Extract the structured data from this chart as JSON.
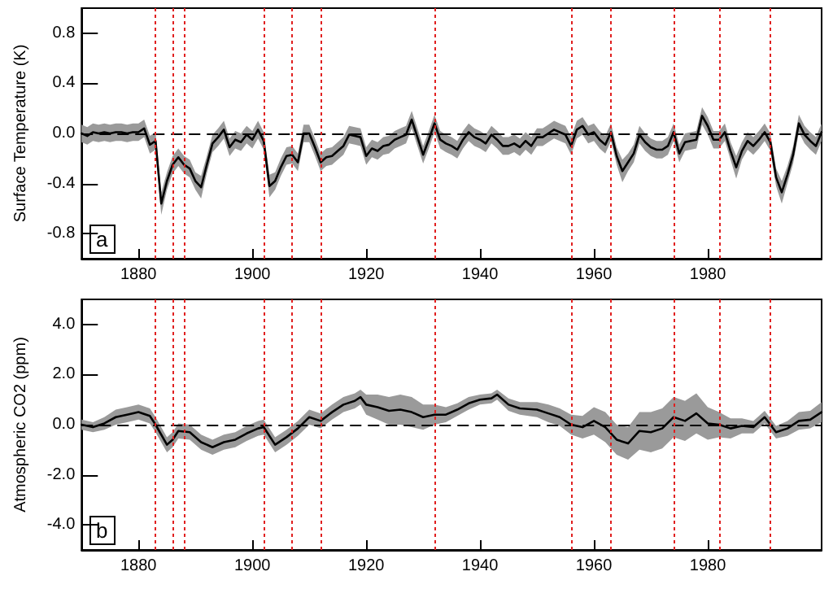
{
  "chart_data": [
    {
      "type": "line",
      "ylabel": "Surface Temperature (K)",
      "annotations": [
        "a"
      ],
      "xlim": [
        1870,
        2000
      ],
      "xticks": [
        1880,
        1900,
        1920,
        1940,
        1960,
        1980
      ],
      "ylim": [
        -1,
        1
      ],
      "yticks": [
        {
          "value": -0.8,
          "label": "-0.8"
        },
        {
          "value": -0.4,
          "label": "-0.4"
        },
        {
          "value": 0,
          "label": "0.0"
        },
        {
          "value": 0.4,
          "label": "0.4"
        },
        {
          "value": 0.8,
          "label": "0.8"
        }
      ],
      "x": [
        1870,
        1871,
        1872,
        1873,
        1874,
        1875,
        1876,
        1877,
        1878,
        1879,
        1880,
        1881,
        1882,
        1883,
        1884,
        1885,
        1886,
        1887,
        1888,
        1889,
        1890,
        1891,
        1892,
        1893,
        1894,
        1895,
        1896,
        1897,
        1898,
        1899,
        1900,
        1901,
        1902,
        1903,
        1904,
        1905,
        1906,
        1907,
        1908,
        1909,
        1910,
        1911,
        1912,
        1913,
        1914,
        1915,
        1916,
        1917,
        1918,
        1919,
        1920,
        1921,
        1922,
        1923,
        1924,
        1925,
        1926,
        1927,
        1928,
        1929,
        1930,
        1931,
        1932,
        1933,
        1934,
        1935,
        1936,
        1937,
        1938,
        1939,
        1940,
        1941,
        1942,
        1943,
        1944,
        1945,
        1946,
        1947,
        1948,
        1949,
        1950,
        1951,
        1952,
        1953,
        1954,
        1955,
        1956,
        1957,
        1958,
        1959,
        1960,
        1961,
        1962,
        1963,
        1964,
        1965,
        1966,
        1967,
        1968,
        1969,
        1970,
        1971,
        1972,
        1973,
        1974,
        1975,
        1976,
        1977,
        1978,
        1979,
        1980,
        1981,
        1982,
        1983,
        1984,
        1985,
        1986,
        1987,
        1988,
        1989,
        1990,
        1991,
        1992,
        1993,
        1994,
        1995,
        1996,
        1997,
        1998,
        1999,
        2000
      ],
      "series": [
        {
          "color": "#000000",
          "values": [
            0.0,
            -0.02,
            0.01,
            0.0,
            0.01,
            0.0,
            0.01,
            0.01,
            0.0,
            0.01,
            0.01,
            0.04,
            -0.09,
            -0.06,
            -0.56,
            -0.38,
            -0.25,
            -0.19,
            -0.25,
            -0.28,
            -0.38,
            -0.43,
            -0.25,
            -0.08,
            -0.03,
            0.03,
            -0.11,
            -0.05,
            -0.07,
            -0.01,
            -0.05,
            0.03,
            -0.06,
            -0.42,
            -0.38,
            -0.27,
            -0.18,
            -0.17,
            -0.23,
            0.0,
            0.0,
            -0.11,
            -0.23,
            -0.19,
            -0.18,
            -0.14,
            -0.1,
            -0.01,
            -0.02,
            -0.03,
            -0.18,
            -0.12,
            -0.14,
            -0.1,
            -0.09,
            -0.05,
            -0.03,
            -0.01,
            0.11,
            -0.03,
            -0.17,
            -0.05,
            0.08,
            -0.05,
            -0.08,
            -0.1,
            -0.13,
            -0.05,
            0.01,
            -0.03,
            -0.05,
            -0.08,
            -0.01,
            -0.05,
            -0.1,
            -0.1,
            -0.08,
            -0.11,
            -0.06,
            -0.1,
            -0.03,
            -0.03,
            0.0,
            0.03,
            0.01,
            -0.01,
            -0.1,
            0.03,
            0.06,
            -0.01,
            0.01,
            -0.05,
            -0.09,
            0.01,
            -0.18,
            -0.3,
            -0.23,
            -0.16,
            -0.01,
            -0.07,
            -0.11,
            -0.13,
            -0.13,
            -0.1,
            0.01,
            -0.16,
            -0.07,
            -0.06,
            -0.05,
            0.14,
            0.06,
            -0.05,
            -0.05,
            0.01,
            -0.14,
            -0.27,
            -0.14,
            -0.06,
            -0.1,
            -0.05,
            0.01,
            -0.07,
            -0.35,
            -0.47,
            -0.33,
            -0.17,
            0.08,
            -0.01,
            -0.06,
            -0.1,
            0.01
          ],
          "lower": [
            -0.07,
            -0.09,
            -0.06,
            -0.07,
            -0.06,
            -0.07,
            -0.06,
            -0.06,
            -0.07,
            -0.06,
            -0.06,
            -0.03,
            -0.16,
            -0.13,
            -0.65,
            -0.45,
            -0.32,
            -0.26,
            -0.32,
            -0.35,
            -0.45,
            -0.52,
            -0.32,
            -0.15,
            -0.1,
            -0.04,
            -0.18,
            -0.12,
            -0.14,
            -0.08,
            -0.12,
            -0.04,
            -0.13,
            -0.51,
            -0.45,
            -0.34,
            -0.25,
            -0.24,
            -0.3,
            -0.07,
            -0.07,
            -0.18,
            -0.3,
            -0.26,
            -0.25,
            -0.21,
            -0.17,
            -0.08,
            -0.09,
            -0.1,
            -0.25,
            -0.19,
            -0.21,
            -0.17,
            -0.16,
            -0.12,
            -0.1,
            -0.08,
            0.04,
            -0.1,
            -0.24,
            -0.12,
            0.01,
            -0.12,
            -0.15,
            -0.17,
            -0.2,
            -0.12,
            -0.06,
            -0.1,
            -0.12,
            -0.15,
            -0.08,
            -0.12,
            -0.17,
            -0.17,
            -0.15,
            -0.18,
            -0.13,
            -0.17,
            -0.1,
            -0.1,
            -0.07,
            -0.04,
            -0.06,
            -0.08,
            -0.17,
            -0.04,
            -0.01,
            -0.08,
            -0.06,
            -0.12,
            -0.16,
            -0.06,
            -0.25,
            -0.39,
            -0.3,
            -0.23,
            -0.08,
            -0.14,
            -0.18,
            -0.2,
            -0.2,
            -0.17,
            -0.06,
            -0.23,
            -0.14,
            -0.13,
            -0.12,
            0.07,
            -0.01,
            -0.12,
            -0.12,
            -0.06,
            -0.21,
            -0.36,
            -0.21,
            -0.13,
            -0.17,
            -0.12,
            -0.06,
            -0.14,
            -0.42,
            -0.56,
            -0.4,
            -0.24,
            0.01,
            -0.08,
            -0.13,
            -0.17,
            -0.06
          ],
          "upper": [
            0.07,
            0.05,
            0.08,
            0.07,
            0.08,
            0.07,
            0.08,
            0.08,
            0.07,
            0.08,
            0.08,
            0.11,
            -0.02,
            0.01,
            -0.47,
            -0.31,
            -0.18,
            -0.12,
            -0.18,
            -0.21,
            -0.31,
            -0.34,
            -0.18,
            -0.01,
            0.04,
            0.1,
            -0.04,
            0.02,
            0.0,
            0.06,
            0.02,
            0.1,
            0.01,
            -0.33,
            -0.31,
            -0.2,
            -0.11,
            -0.1,
            -0.16,
            0.07,
            0.07,
            -0.04,
            -0.16,
            -0.12,
            -0.11,
            -0.07,
            -0.03,
            0.06,
            0.05,
            0.04,
            -0.11,
            -0.05,
            -0.07,
            -0.03,
            -0.02,
            0.02,
            0.04,
            0.06,
            0.18,
            0.04,
            -0.1,
            0.02,
            0.15,
            0.02,
            -0.01,
            -0.03,
            -0.06,
            0.02,
            0.08,
            0.04,
            0.02,
            -0.01,
            0.06,
            0.02,
            -0.03,
            -0.03,
            -0.01,
            -0.04,
            0.01,
            -0.03,
            0.04,
            0.04,
            0.07,
            0.1,
            0.08,
            0.06,
            -0.03,
            0.1,
            0.13,
            0.06,
            0.08,
            0.02,
            -0.02,
            0.08,
            -0.11,
            -0.21,
            -0.16,
            -0.09,
            0.06,
            0.0,
            -0.04,
            -0.06,
            -0.06,
            -0.03,
            0.08,
            -0.09,
            0.0,
            0.01,
            0.02,
            0.21,
            0.13,
            0.02,
            0.02,
            0.08,
            -0.07,
            -0.18,
            -0.07,
            0.01,
            -0.03,
            0.02,
            0.08,
            0.0,
            -0.28,
            -0.38,
            -0.26,
            -0.1,
            0.15,
            0.06,
            0.01,
            -0.03,
            0.08
          ]
        }
      ],
      "ref_lines": [
        {
          "axis": "y",
          "value": 0,
          "color": "#000000",
          "line_style": "dashed"
        },
        {
          "axis": "x",
          "value": 1883,
          "color": "#e02020",
          "line_style": "dotted"
        },
        {
          "axis": "x",
          "value": 1886,
          "color": "#e02020",
          "line_style": "dotted"
        },
        {
          "axis": "x",
          "value": 1888,
          "color": "#e02020",
          "line_style": "dotted"
        },
        {
          "axis": "x",
          "value": 1902,
          "color": "#e02020",
          "line_style": "dotted"
        },
        {
          "axis": "x",
          "value": 1907,
          "color": "#e02020",
          "line_style": "dotted"
        },
        {
          "axis": "x",
          "value": 1912,
          "color": "#e02020",
          "line_style": "dotted"
        },
        {
          "axis": "x",
          "value": 1932,
          "color": "#e02020",
          "line_style": "dotted"
        },
        {
          "axis": "x",
          "value": 1956,
          "color": "#e02020",
          "line_style": "dotted"
        },
        {
          "axis": "x",
          "value": 1963,
          "color": "#e02020",
          "line_style": "dotted"
        },
        {
          "axis": "x",
          "value": 1974,
          "color": "#e02020",
          "line_style": "dotted"
        },
        {
          "axis": "x",
          "value": 1982,
          "color": "#e02020",
          "line_style": "dotted"
        },
        {
          "axis": "x",
          "value": 1991,
          "color": "#e02020",
          "line_style": "dotted"
        }
      ]
    },
    {
      "type": "line",
      "ylabel": "Atmospheric CO2 (ppm)",
      "annotations": [
        "b"
      ],
      "xlim": [
        1870,
        2000
      ],
      "xticks": [
        1880,
        1900,
        1920,
        1940,
        1960,
        1980
      ],
      "ylim": [
        -5,
        5
      ],
      "yticks": [
        {
          "value": -4,
          "label": "-4.0"
        },
        {
          "value": -2,
          "label": "-2.0"
        },
        {
          "value": 0,
          "label": "0.0"
        },
        {
          "value": 2,
          "label": "2.0"
        },
        {
          "value": 4,
          "label": "4.0"
        }
      ],
      "x": [
        1870,
        1872,
        1874,
        1876,
        1878,
        1880,
        1882,
        1883,
        1885,
        1886,
        1887,
        1889,
        1891,
        1893,
        1895,
        1897,
        1899,
        1901,
        1902,
        1904,
        1906,
        1908,
        1910,
        1912,
        1914,
        1916,
        1918,
        1919,
        1920,
        1922,
        1924,
        1926,
        1928,
        1930,
        1932,
        1934,
        1936,
        1938,
        1940,
        1942,
        1943,
        1945,
        1947,
        1950,
        1952,
        1954,
        1956,
        1958,
        1960,
        1962,
        1964,
        1966,
        1968,
        1970,
        1972,
        1974,
        1976,
        1978,
        1980,
        1982,
        1984,
        1986,
        1988,
        1990,
        1992,
        1994,
        1996,
        1998,
        2000
      ],
      "series": [
        {
          "color": "#000000",
          "values": [
            0.0,
            -0.1,
            0.05,
            0.3,
            0.4,
            0.5,
            0.35,
            0.0,
            -0.8,
            -0.6,
            -0.25,
            -0.3,
            -0.7,
            -0.9,
            -0.7,
            -0.6,
            -0.35,
            -0.15,
            -0.1,
            -0.8,
            -0.5,
            -0.15,
            0.3,
            0.15,
            0.5,
            0.8,
            0.95,
            1.1,
            0.8,
            0.7,
            0.55,
            0.6,
            0.5,
            0.3,
            0.4,
            0.4,
            0.6,
            0.85,
            1.0,
            1.05,
            1.2,
            0.8,
            0.65,
            0.6,
            0.45,
            0.3,
            0.0,
            -0.1,
            0.15,
            -0.1,
            -0.6,
            -0.75,
            -0.25,
            -0.3,
            -0.15,
            0.3,
            0.15,
            0.45,
            0.05,
            0.0,
            -0.15,
            -0.05,
            -0.1,
            0.3,
            -0.3,
            -0.15,
            0.15,
            0.2,
            0.5
          ],
          "lower": [
            -0.2,
            -0.3,
            -0.2,
            0.0,
            0.1,
            0.2,
            0.05,
            -0.3,
            -1.1,
            -0.9,
            -0.55,
            -0.6,
            -1.0,
            -1.2,
            -1.0,
            -0.9,
            -0.65,
            -0.45,
            -0.4,
            -1.1,
            -0.8,
            -0.45,
            0.0,
            -0.15,
            0.2,
            0.5,
            0.65,
            0.8,
            0.4,
            0.2,
            0.0,
            0.0,
            -0.1,
            -0.2,
            0.0,
            0.1,
            0.35,
            0.6,
            0.8,
            0.85,
            1.0,
            0.55,
            0.4,
            0.3,
            0.1,
            -0.05,
            -0.4,
            -0.55,
            -0.4,
            -0.7,
            -1.2,
            -1.4,
            -1.0,
            -1.1,
            -0.95,
            -0.5,
            -0.65,
            -0.35,
            -0.6,
            -0.5,
            -0.55,
            -0.35,
            -0.35,
            0.05,
            -0.55,
            -0.45,
            -0.2,
            -0.15,
            0.1
          ],
          "upper": [
            0.2,
            0.1,
            0.3,
            0.6,
            0.7,
            0.8,
            0.65,
            0.3,
            -0.5,
            -0.3,
            0.05,
            0.0,
            -0.4,
            -0.6,
            -0.4,
            -0.3,
            -0.05,
            0.15,
            0.2,
            -0.5,
            -0.2,
            0.15,
            0.6,
            0.45,
            0.8,
            1.1,
            1.25,
            1.4,
            1.2,
            1.2,
            1.1,
            1.2,
            1.1,
            0.8,
            0.8,
            0.7,
            0.85,
            1.1,
            1.2,
            1.25,
            1.4,
            1.05,
            0.9,
            0.9,
            0.8,
            0.65,
            0.4,
            0.35,
            0.7,
            0.5,
            0.0,
            -0.1,
            0.5,
            0.5,
            0.65,
            1.1,
            0.95,
            1.25,
            0.7,
            0.5,
            0.25,
            0.25,
            0.15,
            0.55,
            -0.05,
            0.15,
            0.5,
            0.55,
            0.9
          ]
        }
      ],
      "ref_lines": [
        {
          "axis": "y",
          "value": 0,
          "color": "#000000",
          "line_style": "dashed"
        },
        {
          "axis": "x",
          "value": 1883,
          "color": "#e02020",
          "line_style": "dotted"
        },
        {
          "axis": "x",
          "value": 1886,
          "color": "#e02020",
          "line_style": "dotted"
        },
        {
          "axis": "x",
          "value": 1888,
          "color": "#e02020",
          "line_style": "dotted"
        },
        {
          "axis": "x",
          "value": 1902,
          "color": "#e02020",
          "line_style": "dotted"
        },
        {
          "axis": "x",
          "value": 1907,
          "color": "#e02020",
          "line_style": "dotted"
        },
        {
          "axis": "x",
          "value": 1912,
          "color": "#e02020",
          "line_style": "dotted"
        },
        {
          "axis": "x",
          "value": 1932,
          "color": "#e02020",
          "line_style": "dotted"
        },
        {
          "axis": "x",
          "value": 1956,
          "color": "#e02020",
          "line_style": "dotted"
        },
        {
          "axis": "x",
          "value": 1963,
          "color": "#e02020",
          "line_style": "dotted"
        },
        {
          "axis": "x",
          "value": 1974,
          "color": "#e02020",
          "line_style": "dotted"
        },
        {
          "axis": "x",
          "value": 1982,
          "color": "#e02020",
          "line_style": "dotted"
        },
        {
          "axis": "x",
          "value": 1991,
          "color": "#e02020",
          "line_style": "dotted"
        }
      ]
    }
  ]
}
